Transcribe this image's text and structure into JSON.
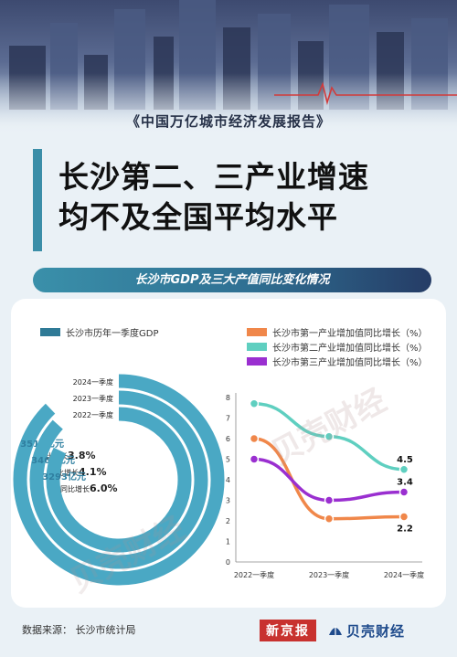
{
  "header": {
    "report_name": "《中国万亿城市经济发展报告》",
    "headline_line1": "长沙第二、三产业增速",
    "headline_line2": "均不及全国平均水平",
    "subtitle": "长沙市GDP及三大产值同比变化情况"
  },
  "colors": {
    "gdp_ring": "#4aa8c4",
    "primary_industry": "#f0874a",
    "secondary_industry": "#5fcfc0",
    "tertiary_industry": "#9a2fd0",
    "accent": "#3b8ea8"
  },
  "chart_data": [
    {
      "type": "radial-bar",
      "legend": [
        "长沙市历年一季度GDP"
      ],
      "categories": [
        "2024一季度",
        "2023一季度",
        "2022一季度"
      ],
      "series": [
        {
          "name": "长沙市历年一季度GDP",
          "values": [
            3512,
            3468,
            3293
          ],
          "value_labels": [
            "3512亿元",
            "3468亿元",
            "3293亿元"
          ],
          "growth_prefix": "同比增长",
          "growth": [
            "3.8%",
            "4.1%",
            "6.0%"
          ]
        }
      ]
    },
    {
      "type": "line",
      "categories": [
        "2022一季度",
        "2023一季度",
        "2024一季度"
      ],
      "xlabel": "",
      "ylabel": "",
      "ylim": [
        0,
        8
      ],
      "yticks": [
        0,
        1,
        2,
        3,
        4,
        5,
        6,
        7,
        8
      ],
      "grid": false,
      "legend_position": "top",
      "series": [
        {
          "name": "长沙市第一产业增加值同比增长（%）",
          "values": [
            6.0,
            2.1,
            2.2
          ],
          "end_label": "2.2"
        },
        {
          "name": "长沙市第二产业增加值同比增长（%）",
          "values": [
            7.7,
            6.1,
            4.5
          ],
          "end_label": "4.5"
        },
        {
          "name": "长沙市第三产业增加值同比增长（%）",
          "values": [
            5.0,
            3.0,
            3.4
          ],
          "end_label": "3.4"
        }
      ]
    }
  ],
  "footer": {
    "source_label": "数据来源：",
    "source_value": "长沙市统计局",
    "logo_red": "新京报",
    "logo_blue": "贝壳财经"
  },
  "watermark": "贝壳财经"
}
